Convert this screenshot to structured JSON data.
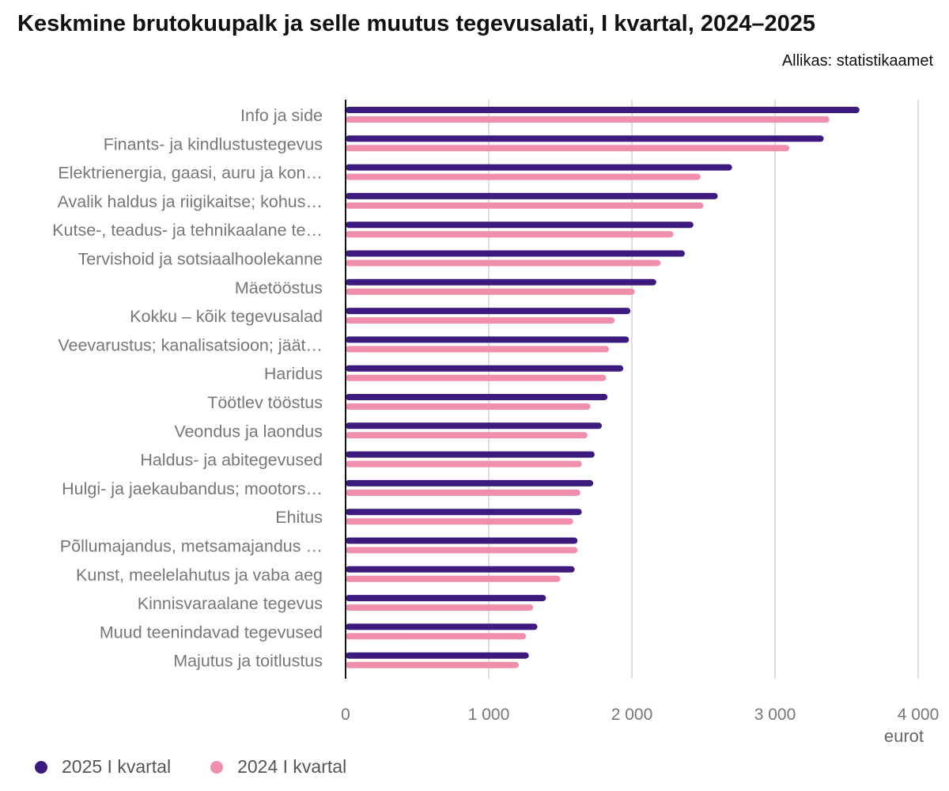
{
  "header": {
    "title": "Keskmine brutokuupalk ja selle muutus tegevusalati, I kvartal, 2024–2025",
    "source": "Allikas: statistikaamet"
  },
  "chart_data": {
    "type": "bar",
    "orientation": "horizontal",
    "title": "Keskmine brutokuupalk ja selle muutus tegevusalati, I kvartal, 2024–2025",
    "xlabel": "eurot",
    "ylabel": "",
    "xlim": [
      0,
      4000
    ],
    "ticks": [
      {
        "value": 0,
        "label": "0"
      },
      {
        "value": 1000,
        "label": "1 000"
      },
      {
        "value": 2000,
        "label": "2 000"
      },
      {
        "value": 3000,
        "label": "3 000"
      },
      {
        "value": 4000,
        "label": "4 000"
      }
    ],
    "grid": true,
    "legend_position": "bottom-left",
    "categories": [
      "Info ja side",
      "Finants- ja kindlustustegevus",
      "Elektrienergia, gaasi, auru ja kon…",
      "Avalik haldus ja riigikaitse; kohus…",
      "Kutse-, teadus- ja tehnikaalane te…",
      "Tervishoid ja sotsiaalhoolekanne",
      "Mäetööstus",
      "Kokku – kõik tegevusalad",
      "Veevarustus; kanalisatsioon; jäät…",
      "Haridus",
      "Töötlev tööstus",
      "Veondus ja laondus",
      "Haldus- ja abitegevused",
      "Hulgi- ja jaekaubandus; mootors…",
      "Ehitus",
      "Põllumajandus, metsamajandus …",
      "Kunst, meelelahutus ja vaba aeg",
      "Kinnisvaraalane tegevus",
      "Muud teenindavad tegevused",
      "Majutus ja toitlustus"
    ],
    "series": [
      {
        "name": "2025 I kvartal",
        "color": "#3d1a7d",
        "values": [
          3590,
          3340,
          2700,
          2600,
          2430,
          2370,
          2170,
          1990,
          1980,
          1940,
          1830,
          1790,
          1740,
          1730,
          1650,
          1620,
          1600,
          1400,
          1340,
          1280
        ]
      },
      {
        "name": "2024 I kvartal",
        "color": "#f08fab",
        "values": [
          3380,
          3100,
          2480,
          2500,
          2290,
          2200,
          2020,
          1880,
          1840,
          1820,
          1710,
          1690,
          1650,
          1640,
          1590,
          1620,
          1500,
          1310,
          1260,
          1210
        ]
      }
    ]
  }
}
